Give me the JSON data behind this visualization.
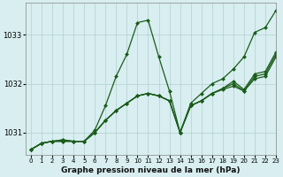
{
  "xlabel": "Graphe pression niveau de la mer (hPa)",
  "background_color": "#d8eef0",
  "grid_color": "#b0d0d0",
  "line_color": "#1a5c1a",
  "marker": "D",
  "markersize": 2.0,
  "linewidth": 0.9,
  "ylim": [
    1030.55,
    1033.65
  ],
  "xlim": [
    -0.5,
    23
  ],
  "yticks": [
    1031,
    1032,
    1033
  ],
  "xticks": [
    0,
    1,
    2,
    3,
    4,
    5,
    6,
    7,
    8,
    9,
    10,
    11,
    12,
    13,
    14,
    15,
    16,
    17,
    18,
    19,
    20,
    21,
    22,
    23
  ],
  "series": [
    [
      1030.65,
      1030.78,
      1030.82,
      1030.82,
      1030.82,
      1030.82,
      1031.05,
      1031.55,
      1032.15,
      1032.6,
      1033.25,
      1033.3,
      1032.55,
      1031.85,
      1031.0,
      1031.6,
      1031.8,
      1032.0,
      1032.1,
      1032.3,
      1032.55,
      1033.05,
      1033.15,
      1033.5
    ],
    [
      1030.65,
      1030.78,
      1030.82,
      1030.82,
      1030.82,
      1030.82,
      1031.0,
      1031.25,
      1031.45,
      1031.6,
      1031.75,
      1031.8,
      1031.75,
      1031.65,
      1031.0,
      1031.55,
      1031.65,
      1031.8,
      1031.88,
      1031.95,
      1031.85,
      1032.1,
      1032.15,
      1032.55
    ],
    [
      1030.65,
      1030.78,
      1030.82,
      1030.85,
      1030.82,
      1030.82,
      1031.0,
      1031.25,
      1031.45,
      1031.6,
      1031.75,
      1031.8,
      1031.75,
      1031.65,
      1031.0,
      1031.55,
      1031.65,
      1031.8,
      1031.9,
      1032.0,
      1031.85,
      1032.15,
      1032.2,
      1032.6
    ],
    [
      1030.65,
      1030.78,
      1030.82,
      1030.85,
      1030.82,
      1030.82,
      1031.0,
      1031.25,
      1031.45,
      1031.6,
      1031.75,
      1031.8,
      1031.75,
      1031.65,
      1031.0,
      1031.55,
      1031.65,
      1031.8,
      1031.9,
      1032.05,
      1031.88,
      1032.2,
      1032.25,
      1032.65
    ]
  ]
}
